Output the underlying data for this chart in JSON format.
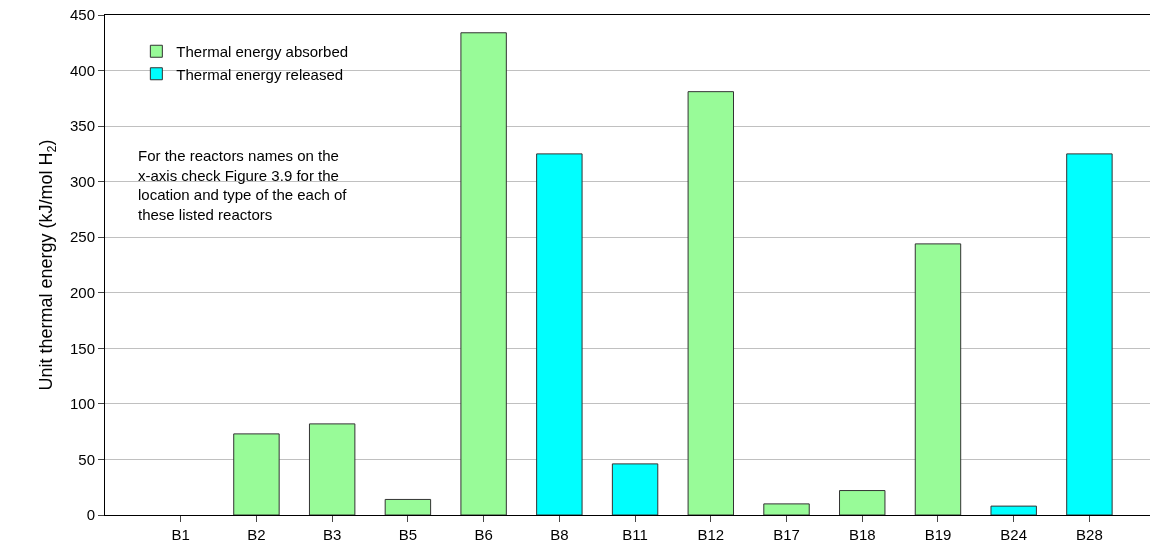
{
  "chart_data": {
    "type": "bar",
    "ylabel": "Unit thermal energy (kJ/mol H$_{2}$)",
    "categories": [
      "B1",
      "B2",
      "B3",
      "B5",
      "B6",
      "B8",
      "B11",
      "B12",
      "B17",
      "B18",
      "B19",
      "B24",
      "B28"
    ],
    "series": [
      {
        "name": "Thermal energy absorbed",
        "color": "#98fb98",
        "values": [
          null,
          73,
          82,
          14,
          434,
          null,
          null,
          381,
          10,
          22,
          244,
          null,
          null
        ]
      },
      {
        "name": "Thermal energy released",
        "color": "#00ffff",
        "values": [
          null,
          null,
          null,
          null,
          null,
          325,
          46,
          null,
          null,
          null,
          null,
          8,
          325
        ]
      }
    ],
    "ylim": [
      0,
      450
    ],
    "yticks": [
      0,
      50,
      100,
      150,
      200,
      250,
      300,
      350,
      400,
      450
    ],
    "grid": "y",
    "legend": "top left",
    "annotations": [
      "For the reactors names on the x-axis check Figure 3.9 for the location and type of the each of these listed reactors"
    ]
  }
}
